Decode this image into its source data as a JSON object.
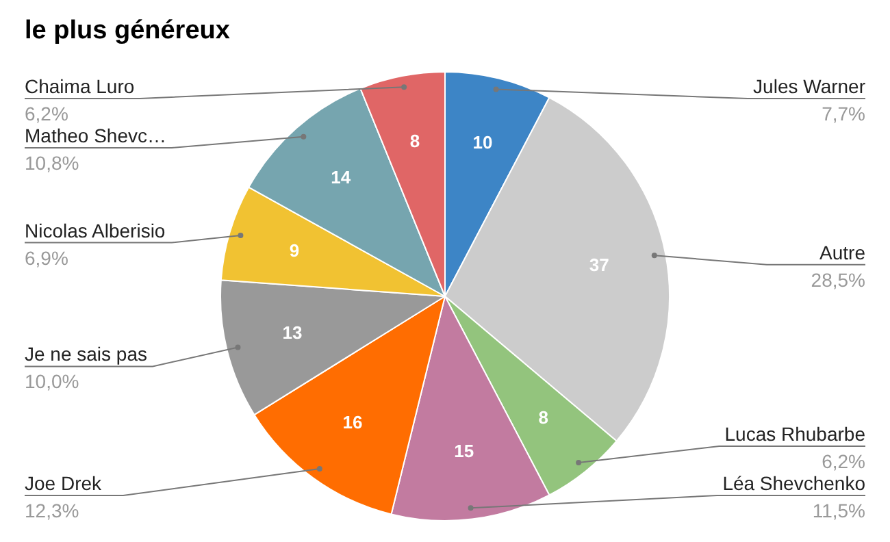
{
  "chart_data": {
    "type": "pie",
    "title": "le plus généreux",
    "categories": [
      "Jules Warner",
      "Autre",
      "Lucas Rhubarbe",
      "Léa Shevchenko",
      "Joe Drek",
      "Je ne sais pas",
      "Nicolas Alberisio",
      "Matheo Shevc…",
      "Chaima Luro"
    ],
    "values": [
      10,
      37,
      8,
      15,
      16,
      13,
      9,
      14,
      8
    ],
    "colors": [
      "#3d85c6",
      "#cccccc",
      "#93c47d",
      "#c27ba0",
      "#ff6d01",
      "#999999",
      "#f1c232",
      "#76a5af",
      "#e06666"
    ],
    "annotations": [
      "7,7%",
      "28,5%",
      "6,2%",
      "11,5%",
      "12,3%",
      "10,0%",
      "6,9%",
      "10,8%",
      "6,2%"
    ],
    "data_labels": true,
    "legend": false
  }
}
